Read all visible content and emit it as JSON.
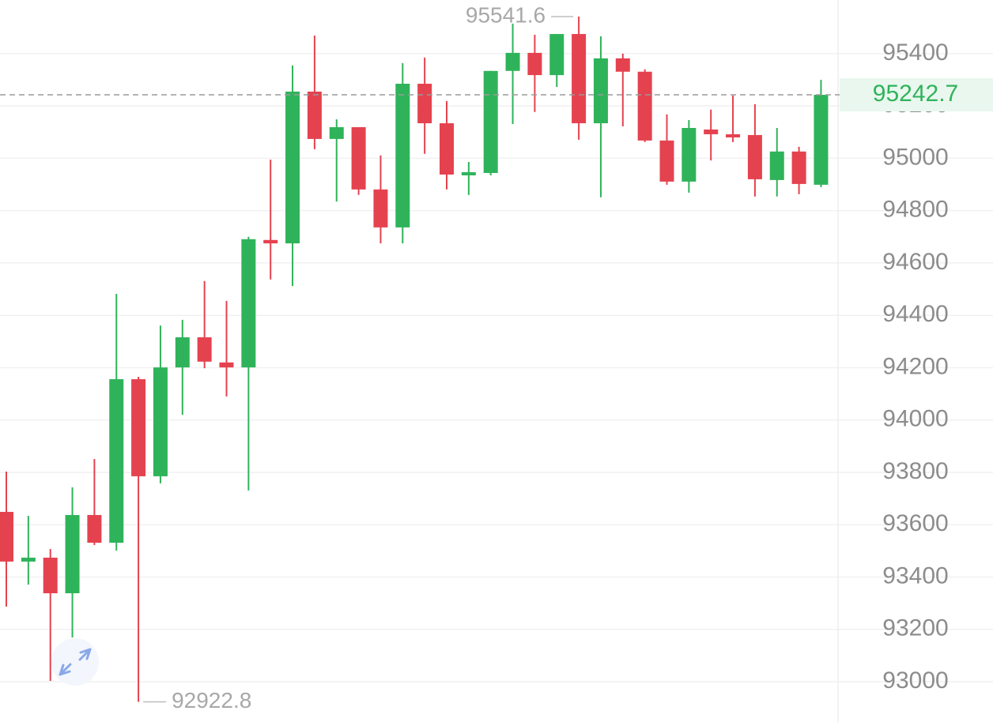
{
  "chart_data": {
    "type": "candlestick",
    "open": [
      93649,
      93459,
      93474,
      93338,
      93637,
      93531,
      94156,
      93785,
      94201,
      94316,
      94220,
      94201,
      94688,
      94675,
      95255,
      95074,
      95119,
      94881,
      94736,
      95285,
      95134,
      94938,
      94944,
      95334,
      95403,
      95318,
      95475,
      95134,
      95382,
      95331,
      95068,
      94911,
      95110,
      95092,
      95089,
      94917,
      95026,
      94899
    ],
    "high": [
      93803,
      93634,
      93507,
      93743,
      93851,
      94482,
      94165,
      94361,
      94383,
      94531,
      94455,
      94700,
      94995,
      95355,
      95469,
      95149,
      95119,
      95011,
      95364,
      95385,
      95219,
      94986,
      95334,
      95515,
      95472,
      95475,
      95541.6,
      95466,
      95400,
      95340,
      95168,
      95146,
      95186,
      95240,
      95207,
      95116,
      95044,
      95300
    ],
    "low": [
      93287,
      93371,
      93003,
      93169,
      93522,
      93501,
      92922.8,
      93758,
      94020,
      94198,
      94090,
      93731,
      94537,
      94512,
      95035,
      94835,
      94860,
      94675,
      94675,
      95017,
      94881,
      94860,
      94935,
      95131,
      95177,
      95273,
      95071,
      94851,
      95122,
      95062,
      94899,
      94869,
      94992,
      95062,
      94854,
      94854,
      94863,
      94890
    ],
    "close": [
      93459,
      93474,
      93338,
      93637,
      93531,
      94156,
      93785,
      94201,
      94316,
      94223,
      94201,
      94691,
      94675,
      95255,
      95074,
      95119,
      94881,
      94736,
      95285,
      95134,
      94938,
      94947,
      95334,
      95403,
      95318,
      95475,
      95134,
      95382,
      95331,
      95068,
      94911,
      95116,
      95092,
      95086,
      94920,
      95026,
      94902,
      95242.7
    ],
    "up_color": "#2fb35a",
    "down_color": "#e5424f",
    "ylim": [
      92846,
      95605
    ],
    "yticks": [
      93000,
      93200,
      93400,
      93600,
      93800,
      94000,
      94200,
      94400,
      94600,
      94800,
      95000,
      95200,
      95400
    ],
    "grid": true
  }
}
